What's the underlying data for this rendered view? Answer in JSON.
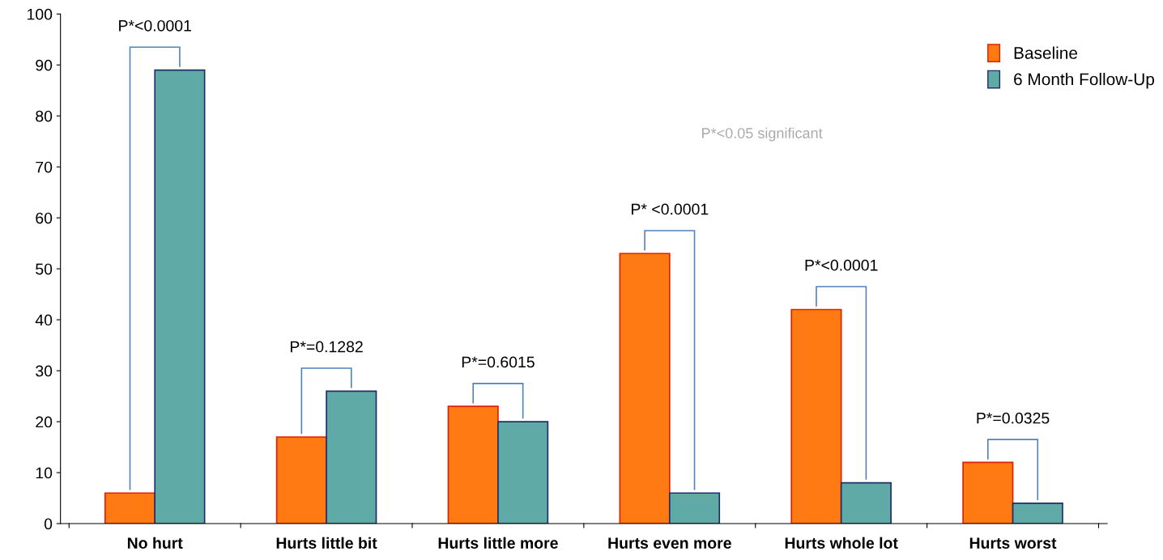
{
  "chart_data": {
    "type": "bar",
    "categories": [
      "No hurt",
      "Hurts little bit",
      "Hurts little more",
      "Hurts even more",
      "Hurts whole lot",
      "Hurts worst"
    ],
    "series": [
      {
        "name": "Baseline",
        "color": "#ff7a12",
        "values": [
          6,
          17,
          23,
          53,
          42,
          12
        ]
      },
      {
        "name": "6 Month Follow-Up",
        "color": "#5fa9a6",
        "values": [
          89,
          26,
          20,
          6,
          8,
          4
        ]
      }
    ],
    "ylim": [
      0,
      100
    ],
    "yticks": [
      0,
      10,
      20,
      30,
      40,
      50,
      60,
      70,
      80,
      90,
      100
    ],
    "grid": false,
    "legend": "top right",
    "annotations": [
      "P*<0.0001",
      "P*=0.1282",
      "P*=0.6015",
      "P* <0.0001",
      "P*<0.0001",
      "P*=0.0325",
      "P*<0.05 significant"
    ]
  }
}
